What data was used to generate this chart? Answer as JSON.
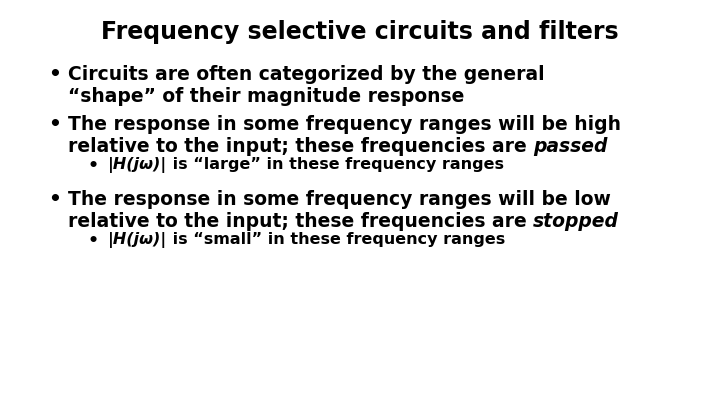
{
  "title": "Frequency selective circuits and filters",
  "title_fontsize": 17,
  "title_fontweight": "bold",
  "background_color": "#ffffff",
  "text_color": "#000000",
  "bullet1_line1": "Circuits are often categorized by the general",
  "bullet1_line2": "“shape” of their magnitude response",
  "bullet2_line1": "The response in some frequency ranges will be high",
  "bullet2_line2_normal": "relative to the input; these frequencies are ",
  "bullet2_line2_italic": "passed",
  "subbullet1_italic": "|H(jω)|",
  "subbullet1_normal": " is “large” in these frequency ranges",
  "bullet3_line1": "The response in some frequency ranges will be low",
  "bullet3_line2_normal": "relative to the input; these frequencies are ",
  "bullet3_line2_italic": "stopped",
  "subbullet2_italic": "|H(jω)|",
  "subbullet2_normal": " is “small” in these frequency ranges",
  "main_fontsize": 13.5,
  "sub_fontsize": 11.5,
  "bullet_main": "•",
  "bullet_sub": "•"
}
